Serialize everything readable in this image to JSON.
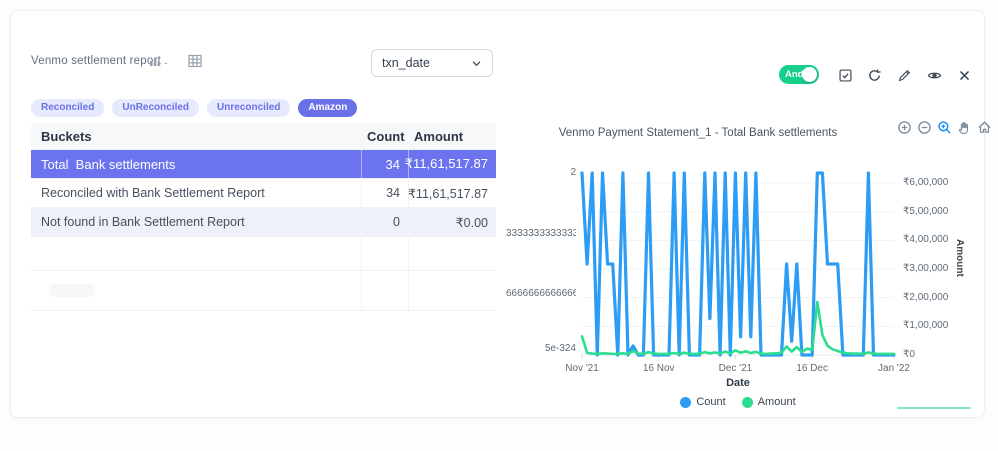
{
  "header": {
    "title": "Venmo settlement report .",
    "dropdown_value": "txn_date",
    "icons": [
      "bar-chart-icon",
      "table-icon"
    ]
  },
  "chips": {
    "items": [
      {
        "label": "Reconciled",
        "variant": "light"
      },
      {
        "label": "UnReconciled",
        "variant": "light"
      },
      {
        "label": "Unreconciled",
        "variant": "light"
      },
      {
        "label": "Amazon",
        "variant": "solid"
      }
    ],
    "accent_color": "#6a71e8"
  },
  "controls": {
    "toggle_label": "And",
    "toggle_on": true,
    "toggle_color": "#15d08b",
    "icons": [
      "checkbox-icon",
      "refresh-icon",
      "edit-icon",
      "eye-icon",
      "close-icon"
    ]
  },
  "table": {
    "headers": [
      "Buckets",
      "Count",
      "Amount"
    ],
    "rows": [
      {
        "bucket": "Total  Bank settlements",
        "count": "34",
        "amount": "₹11,61,517.87",
        "selected": true
      },
      {
        "bucket": "Reconciled with Bank Settlement Report",
        "count": "34",
        "amount": "₹11,61,517.87",
        "selected": false
      },
      {
        "bucket": "Not found in Bank Settlement Report",
        "count": "0",
        "amount": "₹0.00",
        "selected": false
      },
      {
        "bucket": "",
        "count": "",
        "amount": "",
        "selected": false
      },
      {
        "bucket": "",
        "count": "",
        "amount": "",
        "selected": false
      }
    ],
    "selected_row_color": "#6b74ee"
  },
  "chart_data": {
    "type": "line",
    "title": "Venmo Payment Statement_1 - Total Bank settlements",
    "xlabel": "Date",
    "y_right_label": "Amount",
    "x_ticks": [
      "Nov '21",
      "16 Nov",
      "Dec '21",
      "16 Dec",
      "Jan '22"
    ],
    "x_tick_days": [
      0,
      15,
      30,
      45,
      61
    ],
    "x_unit": "day",
    "y_left_ticks": [
      "2",
      "3333333333333",
      "6666666666666",
      "5e-324"
    ],
    "y_right_ticks": [
      "₹6,00,000",
      "₹5,00,000",
      "₹4,00,000",
      "₹3,00,000",
      "₹2,00,000",
      "₹1,00,000",
      "₹0"
    ],
    "grid": true,
    "legend_position": "bottom",
    "toolbar_icons": [
      "zoom-in",
      "zoom-out",
      "selection-zoom",
      "pan",
      "home",
      "menu"
    ],
    "toolbar_active": "selection-zoom",
    "series": [
      {
        "name": "Count",
        "color": "#2d9cf4",
        "axis": "left",
        "ymax": 2,
        "values": [
          2,
          1,
          2,
          0,
          2,
          1,
          1,
          0,
          2,
          0,
          0.1,
          0,
          0,
          2,
          0,
          0,
          0,
          0,
          2,
          0,
          2,
          0,
          0,
          0,
          2,
          0.4,
          2,
          0,
          2,
          0,
          2,
          0.2,
          2,
          0.2,
          2,
          0,
          0,
          0,
          0,
          0,
          1,
          0.15,
          1,
          0,
          0,
          0,
          2,
          2,
          1,
          1,
          1,
          0,
          0,
          0,
          0,
          0,
          2,
          0,
          0,
          0,
          0,
          0
        ]
      },
      {
        "name": "Amount",
        "color": "#2bdd8e",
        "axis": "right",
        "ymax": 600000,
        "values": [
          65000,
          8000,
          5000,
          4000,
          6000,
          5000,
          4000,
          4000,
          6000,
          4000,
          14000,
          5000,
          4000,
          10000,
          5000,
          4000,
          4000,
          4000,
          7000,
          4000,
          8000,
          4000,
          4000,
          5000,
          10000,
          6000,
          9000,
          5000,
          12000,
          6000,
          16000,
          8000,
          13000,
          7000,
          11000,
          5000,
          4000,
          5000,
          6000,
          8000,
          30000,
          12000,
          28000,
          10000,
          22000,
          18000,
          185000,
          70000,
          32000,
          20000,
          14000,
          8000,
          6000,
          5000,
          5000,
          4000,
          9000,
          5000,
          4000,
          4000,
          4000,
          4000
        ]
      }
    ]
  },
  "misc": {
    "teal_line": "#86e7c6"
  }
}
